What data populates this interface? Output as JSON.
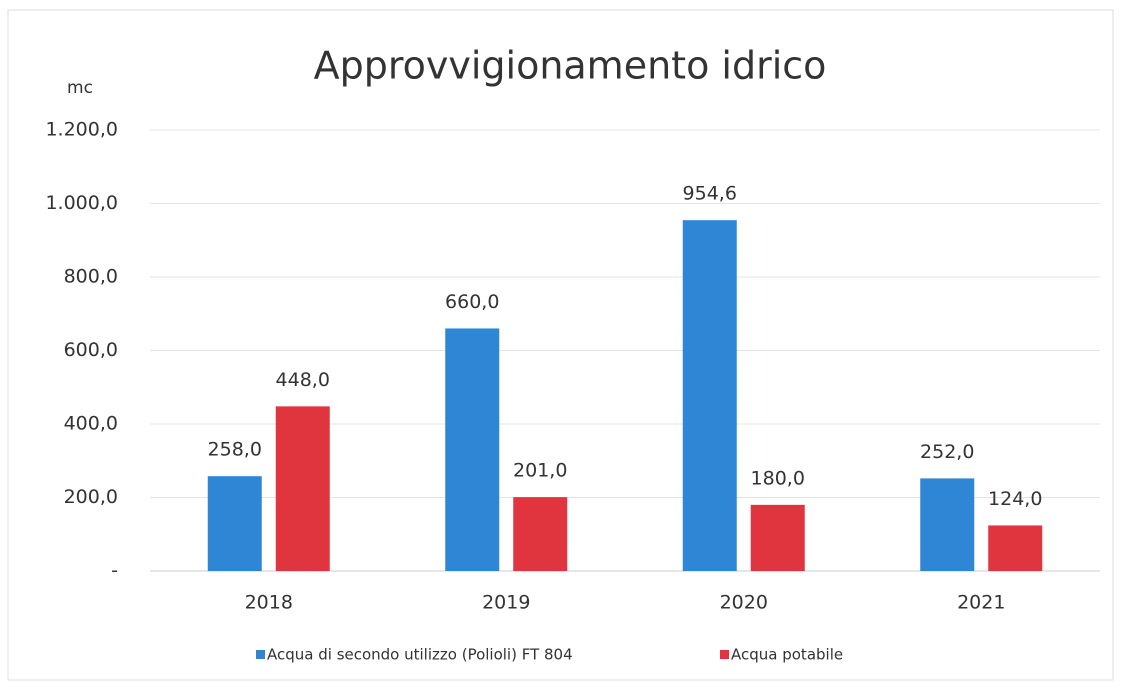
{
  "chart_data": {
    "type": "bar",
    "title": "Approvvigionamento idrico",
    "y_label": "mc",
    "categories": [
      "2018",
      "2019",
      "2020",
      "2021"
    ],
    "series": [
      {
        "name": "Acqua di secondo utilizzo (Polioli) FT 804",
        "color": "#2f86d5",
        "values": [
          258,
          660,
          954.6,
          252
        ],
        "value_labels": [
          "258,0",
          "660,0",
          "954,6",
          "252,0"
        ]
      },
      {
        "name": "Acqua potabile",
        "color": "#e0343e",
        "values": [
          448,
          201,
          180,
          124
        ],
        "value_labels": [
          "448,0",
          "201,0",
          "180,0",
          "124,0"
        ]
      }
    ],
    "ylim": [
      0,
      1200
    ],
    "yticks": [
      {
        "value": 0,
        "label": "-"
      },
      {
        "value": 200,
        "label": "200,0"
      },
      {
        "value": 400,
        "label": "400,0"
      },
      {
        "value": 600,
        "label": "600,0"
      },
      {
        "value": 800,
        "label": "800,0"
      },
      {
        "value": 1000,
        "label": "1.000,0"
      },
      {
        "value": 1200,
        "label": "1.200,0"
      }
    ],
    "grid": true,
    "legend": "bottom"
  }
}
